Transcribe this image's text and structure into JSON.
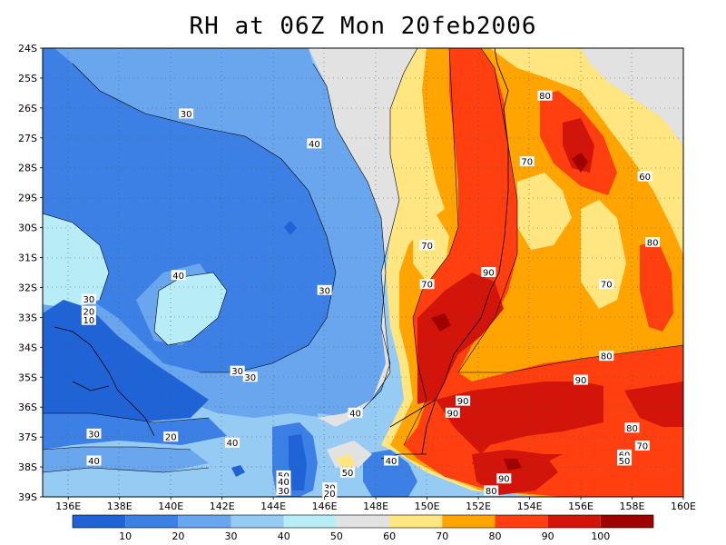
{
  "title": "RH at 06Z Mon 20feb2006",
  "chart_data": {
    "type": "heatmap",
    "title": "RH at 06Z Mon 20feb2006",
    "variable": "RH",
    "lat_ticks": [
      "24S",
      "25S",
      "26S",
      "27S",
      "28S",
      "29S",
      "30S",
      "31S",
      "32S",
      "33S",
      "34S",
      "35S",
      "36S",
      "37S",
      "38S",
      "39S"
    ],
    "lon_ticks": [
      "136E",
      "138E",
      "140E",
      "142E",
      "144E",
      "146E",
      "148E",
      "150E",
      "152E",
      "154E",
      "156E",
      "158E",
      "160E"
    ],
    "lat_range": [
      -39,
      -24
    ],
    "lon_range": [
      135,
      160
    ],
    "grid": true,
    "colorbar": {
      "labels": [
        "10",
        "20",
        "30",
        "40",
        "50",
        "60",
        "70",
        "80",
        "90",
        "100"
      ],
      "colors": [
        "#1f63d6",
        "#3c80e6",
        "#6aa6ee",
        "#96cbf4",
        "#b8edf8",
        "#e2e2e2",
        "#ffe680",
        "#ffa400",
        "#ff3f10",
        "#d2140a",
        "#a00000"
      ]
    },
    "contour_labels": [
      {
        "text": "30",
        "lon": 140.6,
        "lat": -26.2
      },
      {
        "text": "40",
        "lon": 145.6,
        "lat": -27.2
      },
      {
        "text": "80",
        "lon": 154.6,
        "lat": -25.6
      },
      {
        "text": "70",
        "lon": 153.9,
        "lat": -27.8
      },
      {
        "text": "60",
        "lon": 158.5,
        "lat": -28.3
      },
      {
        "text": "70",
        "lon": 150.0,
        "lat": -30.6
      },
      {
        "text": "80",
        "lon": 158.8,
        "lat": -30.5
      },
      {
        "text": "70",
        "lon": 150.0,
        "lat": -31.9
      },
      {
        "text": "90",
        "lon": 152.4,
        "lat": -31.5
      },
      {
        "text": "70",
        "lon": 157.0,
        "lat": -31.9
      },
      {
        "text": "30",
        "lon": 146.0,
        "lat": -32.1
      },
      {
        "text": "40",
        "lon": 140.3,
        "lat": -31.6
      },
      {
        "text": "30",
        "lon": 136.8,
        "lat": -32.4
      },
      {
        "text": "20",
        "lon": 136.8,
        "lat": -32.8
      },
      {
        "text": "10",
        "lon": 136.8,
        "lat": -33.1
      },
      {
        "text": "80",
        "lon": 157.0,
        "lat": -34.3
      },
      {
        "text": "30",
        "lon": 142.6,
        "lat": -34.8
      },
      {
        "text": "30",
        "lon": 143.1,
        "lat": -35.0
      },
      {
        "text": "90",
        "lon": 156.0,
        "lat": -35.1
      },
      {
        "text": "90",
        "lon": 151.4,
        "lat": -35.8
      },
      {
        "text": "90",
        "lon": 151.0,
        "lat": -36.2
      },
      {
        "text": "40",
        "lon": 147.2,
        "lat": -36.2
      },
      {
        "text": "80",
        "lon": 158.0,
        "lat": -36.7
      },
      {
        "text": "30",
        "lon": 137.0,
        "lat": -36.9
      },
      {
        "text": "20",
        "lon": 140.0,
        "lat": -37.0
      },
      {
        "text": "40",
        "lon": 142.4,
        "lat": -37.2
      },
      {
        "text": "70",
        "lon": 158.4,
        "lat": -37.3
      },
      {
        "text": "60",
        "lon": 157.7,
        "lat": -37.6
      },
      {
        "text": "50",
        "lon": 157.7,
        "lat": -37.8
      },
      {
        "text": "40",
        "lon": 137.0,
        "lat": -37.8
      },
      {
        "text": "40",
        "lon": 148.6,
        "lat": -37.8
      },
      {
        "text": "50",
        "lon": 144.4,
        "lat": -38.3
      },
      {
        "text": "40",
        "lon": 144.4,
        "lat": -38.5
      },
      {
        "text": "50",
        "lon": 146.9,
        "lat": -38.2
      },
      {
        "text": "30",
        "lon": 144.4,
        "lat": -38.8
      },
      {
        "text": "90",
        "lon": 153.0,
        "lat": -38.4
      },
      {
        "text": "30",
        "lon": 146.2,
        "lat": -38.7
      },
      {
        "text": "20",
        "lon": 146.2,
        "lat": -38.9
      },
      {
        "text": "80",
        "lon": 152.5,
        "lat": -38.8
      }
    ]
  }
}
